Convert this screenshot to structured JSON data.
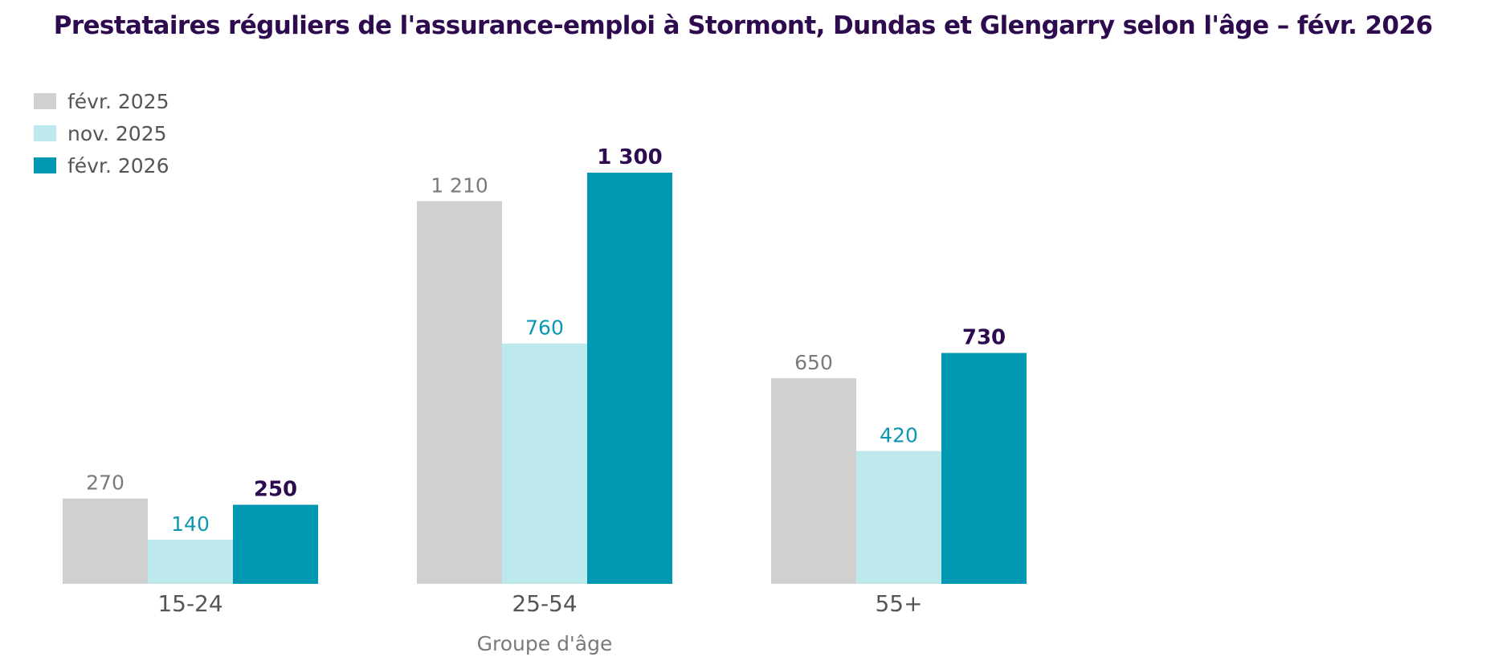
{
  "chart_data": {
    "type": "bar",
    "title": "Prestataires réguliers de l'assurance-emploi à Stormont, Dundas et Glengarry selon l'âge – févr. 2026",
    "xlabel": "Groupe d'âge",
    "ylabel": "",
    "categories": [
      "15-24",
      "25-54",
      "55+"
    ],
    "series": [
      {
        "name": "févr. 2025",
        "values": [
          270,
          1210,
          650
        ],
        "labels": [
          "270",
          "1 210",
          "650"
        ],
        "color": "#d0d0d0",
        "label_color": "#7a7a7a"
      },
      {
        "name": "nov. 2025",
        "values": [
          140,
          760,
          420
        ],
        "labels": [
          "140",
          "760",
          "420"
        ],
        "color": "#bde9ec",
        "label_color": "#0a97b2"
      },
      {
        "name": "févr. 2026",
        "values": [
          250,
          1300,
          730
        ],
        "labels": [
          "250",
          "1 300",
          "730"
        ],
        "color": "#0097b2",
        "label_color": "#2e0a4f"
      }
    ],
    "ylim": [
      0,
      1300
    ],
    "grid": false,
    "legend": "top-left"
  }
}
